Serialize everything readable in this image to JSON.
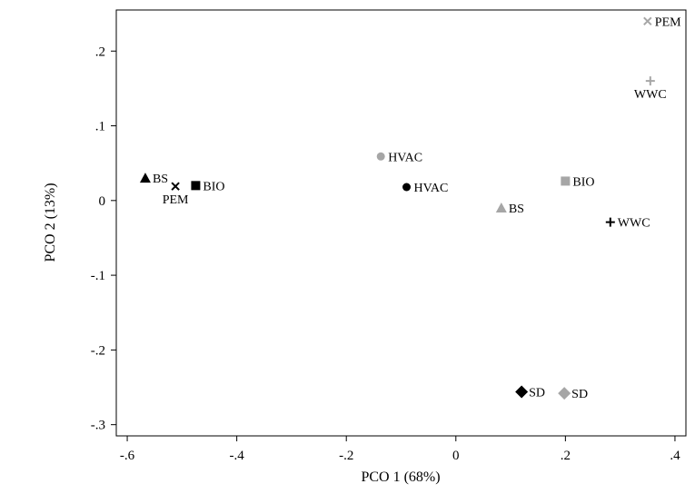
{
  "chart_data": {
    "type": "scatter",
    "title": "",
    "xlabel": "PCO 1 (68%)",
    "ylabel": "PCO 2 (13%)",
    "xlim": [
      -0.62,
      0.42
    ],
    "ylim": [
      -0.315,
      0.255
    ],
    "x_ticks": [
      -0.6,
      -0.4,
      -0.2,
      0,
      0.2,
      0.4
    ],
    "x_tick_labels": [
      "-.6",
      "-.4",
      "-.2",
      "0",
      ".2",
      ".4"
    ],
    "y_ticks": [
      -0.3,
      -0.2,
      -0.1,
      0,
      0.1,
      0.2
    ],
    "y_tick_labels": [
      "-.3",
      "-.2",
      "-.1",
      "0",
      ".1",
      ".2"
    ],
    "grid": false,
    "legend": "none",
    "colors": {
      "black": "#000000",
      "gray": "#a6a6a6"
    },
    "points": [
      {
        "label": "BS",
        "x": -0.567,
        "y": 0.03,
        "marker": "triangle",
        "color": "#000000",
        "label_pos": "right"
      },
      {
        "label": "PEM",
        "x": -0.512,
        "y": 0.019,
        "marker": "x",
        "color": "#000000",
        "label_pos": "below"
      },
      {
        "label": "BIO",
        "x": -0.475,
        "y": 0.02,
        "marker": "square",
        "color": "#000000",
        "label_pos": "right"
      },
      {
        "label": "HVAC",
        "x": -0.09,
        "y": 0.018,
        "marker": "circle",
        "color": "#000000",
        "label_pos": "right"
      },
      {
        "label": "WWC",
        "x": 0.282,
        "y": -0.029,
        "marker": "plus",
        "color": "#000000",
        "label_pos": "right"
      },
      {
        "label": "SD",
        "x": 0.12,
        "y": -0.256,
        "marker": "diamond",
        "color": "#000000",
        "label_pos": "right"
      },
      {
        "label": "HVAC",
        "x": -0.137,
        "y": 0.059,
        "marker": "circle",
        "color": "#a6a6a6",
        "label_pos": "right"
      },
      {
        "label": "BIO",
        "x": 0.2,
        "y": 0.026,
        "marker": "square",
        "color": "#a6a6a6",
        "label_pos": "right"
      },
      {
        "label": "BS",
        "x": 0.083,
        "y": -0.01,
        "marker": "triangle",
        "color": "#a6a6a6",
        "label_pos": "right"
      },
      {
        "label": "PEM",
        "x": 0.35,
        "y": 0.24,
        "marker": "x",
        "color": "#a6a6a6",
        "label_pos": "right"
      },
      {
        "label": "WWC",
        "x": 0.355,
        "y": 0.16,
        "marker": "plus",
        "color": "#a6a6a6",
        "label_pos": "below"
      },
      {
        "label": "SD",
        "x": 0.198,
        "y": -0.258,
        "marker": "diamond",
        "color": "#a6a6a6",
        "label_pos": "right"
      }
    ]
  }
}
